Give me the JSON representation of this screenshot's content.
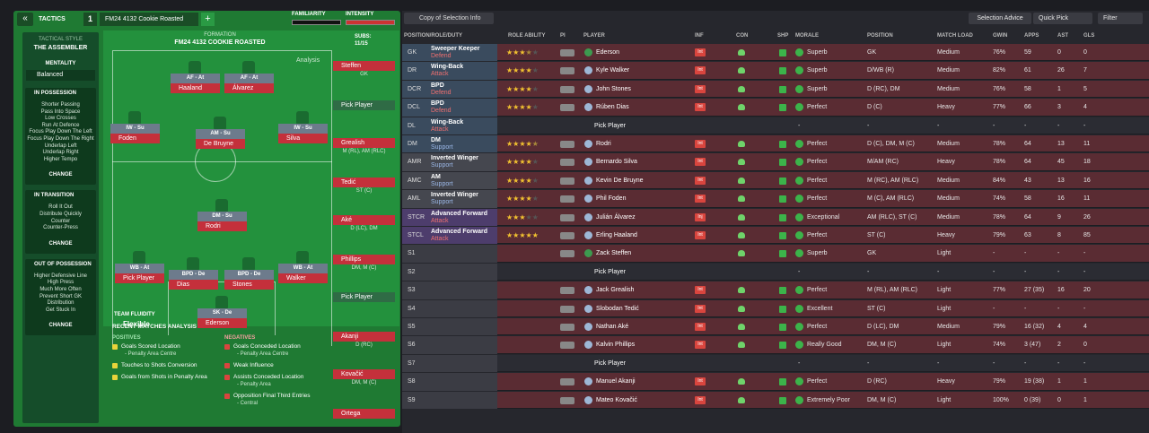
{
  "header": {
    "tab": "TACTICS",
    "slot": "1",
    "tactic": "FM24 4132 Cookie Roasted",
    "familiarity": "FAMILIARITY",
    "intensity": "INTENSITY"
  },
  "sidebar": {
    "style_label": "TACTICAL STYLE",
    "style": "THE ASSEMBLER",
    "mentality_label": "MENTALITY",
    "mentality": "Balanced",
    "sections": [
      {
        "title": "IN POSSESSION",
        "items": [
          "Shorter Passing",
          "Pass Into Space",
          "Low Crosses",
          "Run At Defence",
          "Focus Play Down The Left",
          "Focus Play Down The Right",
          "Underlap Left",
          "Underlap Right",
          "Higher Tempo"
        ],
        "button": "CHANGE"
      },
      {
        "title": "IN TRANSITION",
        "items": [
          "Roll It Out",
          "Distribute Quickly",
          "Counter",
          "Counter-Press"
        ],
        "button": "CHANGE"
      },
      {
        "title": "OUT OF POSSESSION",
        "items": [
          "Higher Defensive Line",
          "High Press",
          "Much More Often",
          "Prevent Short GK",
          "Distribution",
          "Get Stuck In"
        ],
        "button": "CHANGE"
      }
    ]
  },
  "pitch": {
    "label": "FORMATION",
    "name": "FM24 4132 COOKIE ROASTED",
    "analysis": "Analysis",
    "fluidity_label": "TEAM FLUIDITY",
    "fluidity": "Flexible",
    "players": [
      {
        "role": "AF - At",
        "name": "Haaland"
      },
      {
        "role": "AF - At",
        "name": "Álvarez"
      },
      {
        "role": "IW - Su",
        "name": "Foden"
      },
      {
        "role": "AM - Su",
        "name": "De Bruyne"
      },
      {
        "role": "IW - Su",
        "name": "Silva"
      },
      {
        "role": "DM - Su",
        "name": "Rodri"
      },
      {
        "role": "WB - At",
        "name": "Pick Player"
      },
      {
        "role": "BPD - De",
        "name": "Dias"
      },
      {
        "role": "BPD - De",
        "name": "Stones"
      },
      {
        "role": "WB - At",
        "name": "Walker"
      },
      {
        "role": "SK - De",
        "name": "Ederson"
      }
    ]
  },
  "subs": {
    "label": "SUBS:",
    "count": "11/15",
    "players": [
      {
        "name": "Steffen",
        "position": "GK"
      },
      {
        "name": "Pick Player"
      },
      {
        "name": "Grealish",
        "position": "M (RL), AM (RLC)"
      },
      {
        "name": "Tedić",
        "position": "ST (C)"
      },
      {
        "name": "Aké",
        "position": "D (LC), DM"
      },
      {
        "name": "Phillips",
        "position": "DM, M (C)"
      },
      {
        "name": "Pick Player"
      },
      {
        "name": "Akanji",
        "position": "D (RC)"
      },
      {
        "name": "Kovačić",
        "position": "DM, M (C)"
      },
      {
        "name": "Ortega"
      }
    ]
  },
  "analysis": {
    "title": "RECENT MATCHES ANALYSIS",
    "positives_label": "POSITIVES",
    "positives": [
      {
        "text": "Goals Scored Location",
        "detail": "- Penalty Area Centre"
      },
      {
        "text": "Touches to Shots Conversion"
      },
      {
        "text": "Goals from Shots in Penalty Area"
      }
    ],
    "negatives_label": "NEGATIVES",
    "negatives": [
      {
        "text": "Goals Conceded Location",
        "detail": "- Penalty Area Centre"
      },
      {
        "text": "Weak Influence"
      },
      {
        "text": "Assists Conceded Location",
        "detail": "- Penalty Area"
      },
      {
        "text": "Opposition Final Third Entries",
        "detail": "- Central"
      }
    ]
  },
  "toolbar": {
    "view": "Copy of Selection Info",
    "advice": "Selection Advice",
    "quick_pick": "Quick Pick",
    "filter": "Filter"
  },
  "table": {
    "columns": [
      "POSITION/ROLE/DUTY",
      "ROLE ABILITY",
      "PI",
      "PLAYER",
      "INF",
      "CON",
      "SHP",
      "MORALE",
      "POSITION",
      "MATCH LOAD",
      "GWIN",
      "APPS",
      "AST",
      "GLS"
    ],
    "rows": [
      {
        "code": "GK",
        "role": "Sweeper Keeper",
        "duty": "Defend",
        "stars": 3.5,
        "player": "Ederson",
        "inf": "Int",
        "morale": "Superb",
        "position": "GK",
        "load": "Medium",
        "gwin": "76%",
        "apps": "59",
        "ast": "0",
        "gls": "0"
      },
      {
        "code": "DR",
        "role": "Wing-Back",
        "duty": "Attack",
        "stars": 4,
        "player": "Kyle Walker",
        "inf": "Int",
        "morale": "Superb",
        "position": "D/WB (R)",
        "load": "Medium",
        "gwin": "82%",
        "apps": "61",
        "ast": "26",
        "gls": "7"
      },
      {
        "code": "DCR",
        "role": "BPD",
        "duty": "Defend",
        "stars": 4,
        "player": "John Stones",
        "inf": "Int",
        "morale": "Superb",
        "position": "D (RC), DM",
        "load": "Medium",
        "gwin": "76%",
        "apps": "58",
        "ast": "1",
        "gls": "5"
      },
      {
        "code": "DCL",
        "role": "BPD",
        "duty": "Defend",
        "stars": 4,
        "player": "Rúben Dias",
        "inf": "Int",
        "morale": "Perfect",
        "position": "D (C)",
        "load": "Heavy",
        "gwin": "77%",
        "apps": "66",
        "ast": "3",
        "gls": "4"
      },
      {
        "code": "DL",
        "role": "Wing-Back",
        "duty": "Attack",
        "player": "Pick Player",
        "morale": "-",
        "position": "-",
        "load": "-",
        "gwin": "-",
        "apps": "-",
        "ast": "-",
        "gls": "-"
      },
      {
        "code": "DM",
        "role": "DM",
        "duty": "Support",
        "stars": 4.5,
        "player": "Rodri",
        "inf": "Int",
        "morale": "Perfect",
        "position": "D (C), DM, M (C)",
        "load": "Medium",
        "gwin": "78%",
        "apps": "64",
        "ast": "13",
        "gls": "11"
      },
      {
        "code": "AMR",
        "role": "Inverted Winger",
        "duty": "Support",
        "stars": 4,
        "player": "Bernardo Silva",
        "inf": "Int",
        "morale": "Perfect",
        "position": "M/AM (RC)",
        "load": "Heavy",
        "gwin": "78%",
        "apps": "64",
        "ast": "45",
        "gls": "18"
      },
      {
        "code": "AMC",
        "role": "AM",
        "duty": "Support",
        "stars": 4,
        "player": "Kevin De Bruyne",
        "inf": "Int",
        "morale": "Perfect",
        "position": "M (RC), AM (RLC)",
        "load": "Medium",
        "gwin": "84%",
        "apps": "43",
        "ast": "13",
        "gls": "16"
      },
      {
        "code": "AML",
        "role": "Inverted Winger",
        "duty": "Support",
        "stars": 4,
        "player": "Phil Foden",
        "inf": "Int",
        "morale": "Perfect",
        "position": "M (C), AM (RLC)",
        "load": "Medium",
        "gwin": "74%",
        "apps": "58",
        "ast": "16",
        "gls": "11"
      },
      {
        "code": "STCR",
        "role": "Advanced Forward",
        "duty": "Attack",
        "stars": 3,
        "player": "Julián Álvarez",
        "inf": "Inj",
        "morale": "Exceptional",
        "position": "AM (RLC), ST (C)",
        "load": "Medium",
        "gwin": "78%",
        "apps": "64",
        "ast": "9",
        "gls": "26"
      },
      {
        "code": "STCL",
        "role": "Advanced Forward",
        "duty": "Attack",
        "stars": 5,
        "player": "Erling Haaland",
        "inf": "Int",
        "morale": "Perfect",
        "position": "ST (C)",
        "load": "Heavy",
        "gwin": "79%",
        "apps": "63",
        "ast": "8",
        "gls": "85"
      },
      {
        "code": "S1",
        "player": "Zack Steffen",
        "morale": "Superb",
        "position": "GK",
        "load": "Light",
        "gwin": "-",
        "apps": "-",
        "ast": "-",
        "gls": "-"
      },
      {
        "code": "S2",
        "player": "Pick Player",
        "morale": "-",
        "position": "-",
        "load": "-",
        "gwin": "-",
        "apps": "-",
        "ast": "-",
        "gls": "-"
      },
      {
        "code": "S3",
        "player": "Jack Grealish",
        "inf": "Int",
        "morale": "Perfect",
        "position": "M (RL), AM (RLC)",
        "load": "Light",
        "gwin": "77%",
        "apps": "27 (35)",
        "ast": "16",
        "gls": "20"
      },
      {
        "code": "S4",
        "player": "Slobodan Tedić",
        "inf": "Int",
        "morale": "Excellent",
        "position": "ST (C)",
        "load": "Light",
        "gwin": "-",
        "apps": "-",
        "ast": "-",
        "gls": "-"
      },
      {
        "code": "S5",
        "player": "Nathan Aké",
        "inf": "Int",
        "morale": "Perfect",
        "position": "D (LC), DM",
        "load": "Medium",
        "gwin": "79%",
        "apps": "16 (32)",
        "ast": "4",
        "gls": "4"
      },
      {
        "code": "S6",
        "player": "Kalvin Phillips",
        "inf": "Int",
        "morale": "Really Good",
        "position": "DM, M (C)",
        "load": "Light",
        "gwin": "74%",
        "apps": "3 (47)",
        "ast": "2",
        "gls": "0"
      },
      {
        "code": "S7",
        "player": "Pick Player",
        "morale": "-",
        "position": "-",
        "load": "-",
        "gwin": "-",
        "apps": "-",
        "ast": "-",
        "gls": "-"
      },
      {
        "code": "S8",
        "player": "Manuel Akanji",
        "inf": "Int",
        "morale": "Perfect",
        "position": "D (RC)",
        "load": "Heavy",
        "gwin": "79%",
        "apps": "19 (38)",
        "ast": "1",
        "gls": "1"
      },
      {
        "code": "S9",
        "player": "Mateo Kovačić",
        "inf": "Int",
        "morale": "Extremely Poor",
        "position": "DM, M (C)",
        "load": "Light",
        "gwin": "100%",
        "apps": "0 (39)",
        "ast": "0",
        "gls": "1"
      }
    ]
  }
}
